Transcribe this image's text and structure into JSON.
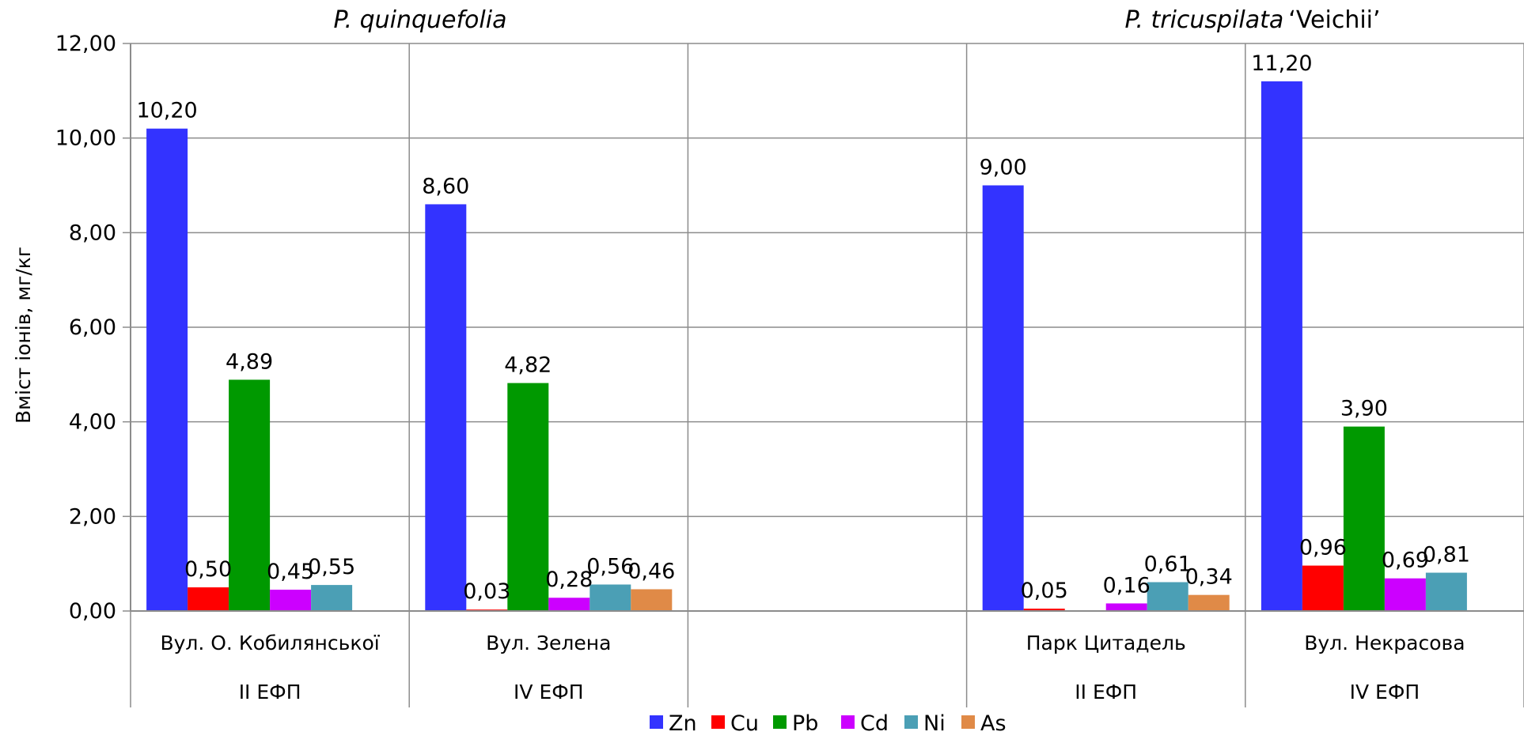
{
  "chart_data": {
    "type": "bar",
    "ylabel": "Вміст іонів, мг/кг",
    "ylim": [
      0,
      12
    ],
    "yticks": [
      "0,00",
      "2,00",
      "4,00",
      "6,00",
      "8,00",
      "10,00",
      "12,00"
    ],
    "grid": true,
    "legend_position": "bottom",
    "group_titles": [
      {
        "title": "P. quinquefolia",
        "style": "italic"
      },
      {
        "title": "P. tricuspilata",
        "suffix": "‘Veichii’"
      }
    ],
    "categories": [
      {
        "label": "Вул. О. Кобилянської",
        "sublabel": "ІІ ЕФП"
      },
      {
        "label": "Вул. Зелена",
        "sublabel": "IV ЕФП"
      },
      {
        "label": "",
        "sublabel": ""
      },
      {
        "label": "Парк Цитадель",
        "sublabel": "ІІ ЕФП"
      },
      {
        "label": "Вул. Некрасова",
        "sublabel": "IV ЕФП"
      }
    ],
    "series": [
      {
        "name": "Zn",
        "color": "#3333ff",
        "values": [
          10.2,
          8.6,
          null,
          9.0,
          11.2
        ],
        "labels": [
          "10,20",
          "8,60",
          "",
          "9,00",
          "11,20"
        ]
      },
      {
        "name": "Cu",
        "color": "#ff0000",
        "values": [
          0.5,
          0.03,
          null,
          0.05,
          0.96
        ],
        "labels": [
          "0,50",
          "0,03",
          "",
          "0,05",
          "0,96"
        ]
      },
      {
        "name": "Pb",
        "color": "#009900",
        "values": [
          4.89,
          4.82,
          null,
          null,
          3.9
        ],
        "labels": [
          "4,89",
          "4,82",
          "",
          "",
          "3,90"
        ]
      },
      {
        "name": "Cd",
        "color": "#cc00ff",
        "values": [
          0.45,
          0.28,
          null,
          0.16,
          0.69
        ],
        "labels": [
          "0,45",
          "0,28",
          "",
          "0,16",
          "0,69"
        ]
      },
      {
        "name": "Ni",
        "color": "#4b9fb5",
        "values": [
          0.55,
          0.56,
          null,
          0.61,
          0.81
        ],
        "labels": [
          "0,55",
          "0,56",
          "",
          "0,61",
          "0,81"
        ]
      },
      {
        "name": "As",
        "color": "#e08a47",
        "values": [
          null,
          0.46,
          null,
          0.34,
          null
        ],
        "labels": [
          "",
          "0,46",
          "",
          "0,34",
          ""
        ]
      }
    ]
  }
}
